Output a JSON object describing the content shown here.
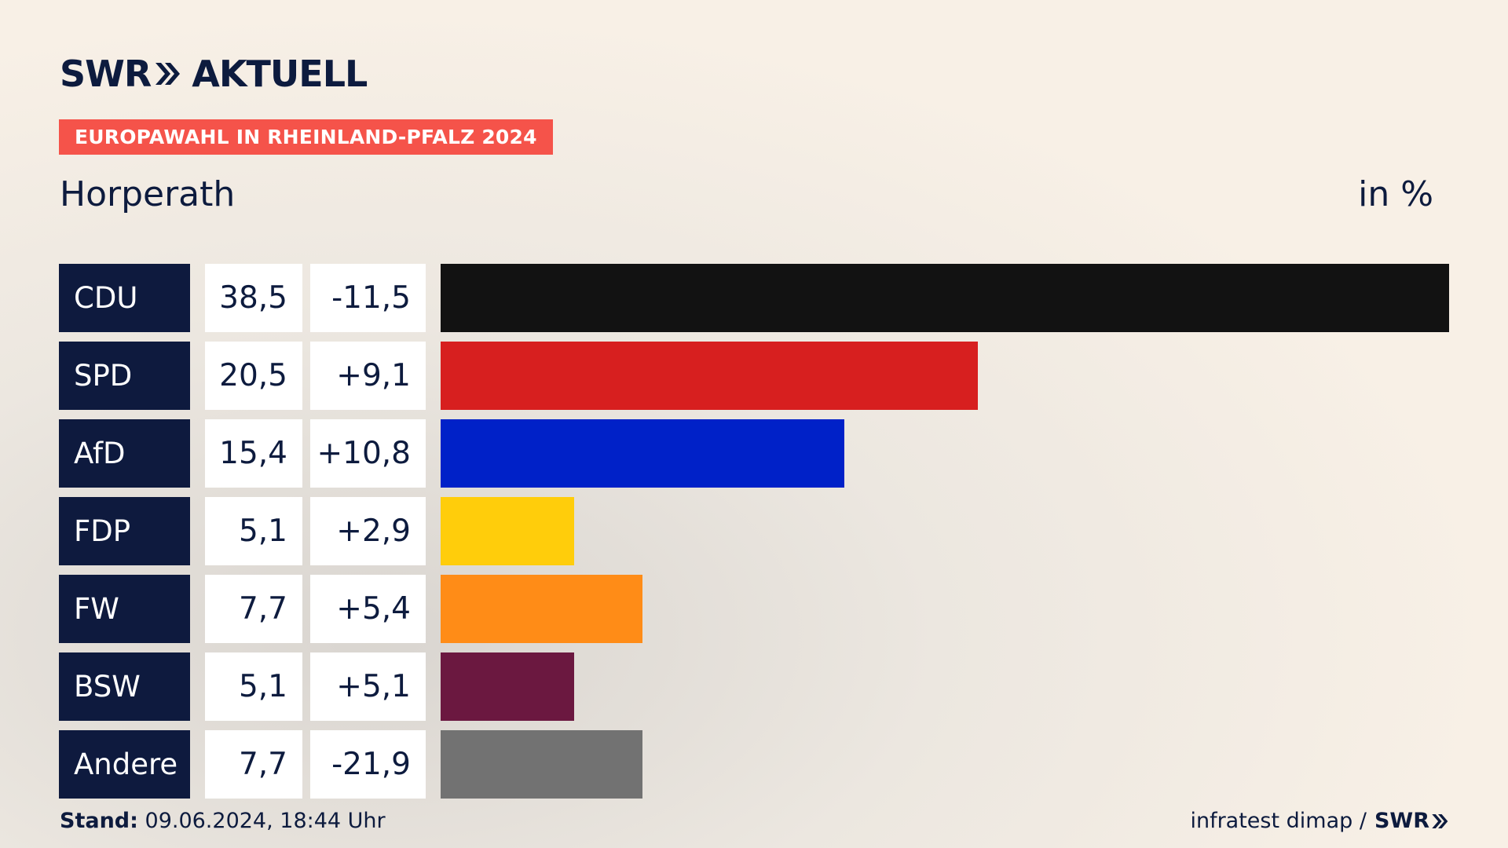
{
  "header": {
    "logo_text": "SWR",
    "logo_suffix": "AKTUELL",
    "tag": "EUROPAWAHL IN RHEINLAND-PFALZ 2024",
    "place": "Horperath",
    "unit": "in %"
  },
  "colors": {
    "tag_bg": "#f5534a",
    "party_cell_bg": "#0e1a3e",
    "CDU": "#121212",
    "SPD": "#d71f1f",
    "AfD": "#0021c8",
    "FDP": "#ffcd0b",
    "FW": "#ff8c17",
    "BSW": "#6b1840",
    "Andere": "#727272"
  },
  "chart_data": {
    "type": "bar",
    "orientation": "horizontal",
    "categories": [
      "CDU",
      "SPD",
      "AfD",
      "FDP",
      "FW",
      "BSW",
      "Andere"
    ],
    "values": [
      38.5,
      20.5,
      15.4,
      5.1,
      7.7,
      5.1,
      7.7
    ],
    "value_labels": [
      "38,5",
      "20,5",
      "15,4",
      "5,1",
      "7,7",
      "5,1",
      "7,7"
    ],
    "change_labels": [
      "-11,5",
      "+9,1",
      "+10,8",
      "+2,9",
      "+5,4",
      "+5,1",
      "-21,9"
    ],
    "changes": [
      -11.5,
      9.1,
      10.8,
      2.9,
      5.4,
      5.1,
      -21.9
    ],
    "colors": [
      "#121212",
      "#d71f1f",
      "#0021c8",
      "#ffcd0b",
      "#ff8c17",
      "#6b1840",
      "#727272"
    ]
  },
  "footer": {
    "stand_label": "Stand:",
    "stand_value": "09.06.2024, 18:44 Uhr",
    "source": "infratest dimap /",
    "source_logo": "SWR"
  }
}
